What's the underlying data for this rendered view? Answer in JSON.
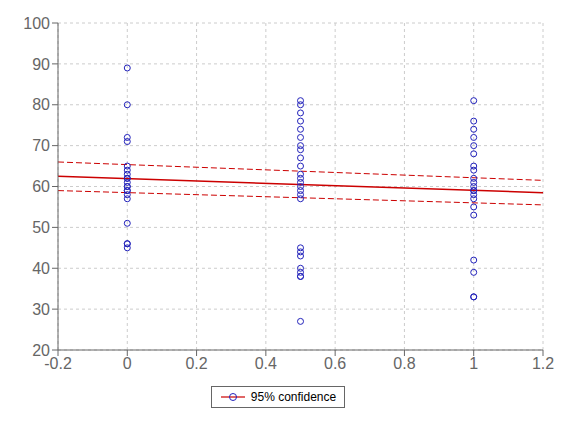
{
  "chart_data": {
    "type": "scatter",
    "title": "",
    "xlim": [
      -0.2,
      1.2
    ],
    "ylim": [
      20,
      100
    ],
    "xticks": [
      -0.2,
      0,
      0.2,
      0.4,
      0.6,
      0.8,
      1.0,
      1.2
    ],
    "yticks": [
      20,
      30,
      40,
      50,
      60,
      70,
      80,
      90,
      100
    ],
    "grid": true,
    "legend": "bottom",
    "series": [
      {
        "type": "scatter",
        "color": "#2222bb",
        "marker": "o",
        "x": [
          0,
          0,
          0,
          0,
          0,
          0,
          0,
          0,
          0,
          0,
          0,
          0,
          0,
          0,
          0,
          0,
          0,
          0,
          0,
          0
        ],
        "values": [
          89,
          80,
          72,
          71,
          65,
          64,
          63,
          62,
          62,
          61,
          60,
          60,
          59,
          59,
          58,
          57,
          51,
          46,
          46,
          45
        ]
      },
      {
        "type": "scatter",
        "color": "#2222bb",
        "marker": "o",
        "x": [
          0.5,
          0.5,
          0.5,
          0.5,
          0.5,
          0.5,
          0.5,
          0.5,
          0.5,
          0.5,
          0.5,
          0.5,
          0.5,
          0.5,
          0.5,
          0.5,
          0.5,
          0.5,
          0.5,
          0.5,
          0.5,
          0.5,
          0.5,
          0.5,
          0.5
        ],
        "values": [
          81,
          80,
          78,
          76,
          74,
          72,
          70,
          69,
          67,
          65,
          63,
          62,
          61,
          60,
          59,
          58,
          57,
          45,
          44,
          43,
          40,
          39,
          38,
          38,
          27
        ]
      },
      {
        "type": "scatter",
        "color": "#2222bb",
        "marker": "o",
        "x": [
          1.0,
          1.0,
          1.0,
          1.0,
          1.0,
          1.0,
          1.0,
          1.0,
          1.0,
          1.0,
          1.0,
          1.0,
          1.0,
          1.0,
          1.0,
          1.0,
          1.0,
          1.0,
          1.0,
          1.0,
          1.0
        ],
        "values": [
          81,
          76,
          74,
          72,
          70,
          68,
          65,
          64,
          62,
          61,
          60,
          59,
          59,
          58,
          57,
          55,
          53,
          42,
          39,
          33,
          33
        ]
      },
      {
        "name": "95% confidence",
        "type": "line",
        "color": "#cc0000",
        "line_style": "solid",
        "x": [
          -0.2,
          1.2
        ],
        "values": [
          62.5,
          58.5
        ]
      },
      {
        "type": "line",
        "color": "#cc0000",
        "line_style": "dashed",
        "x": [
          -0.2,
          1.2
        ],
        "values": [
          66.0,
          61.5
        ]
      },
      {
        "type": "line",
        "color": "#cc0000",
        "line_style": "dashed",
        "x": [
          -0.2,
          1.2
        ],
        "values": [
          59.0,
          55.5
        ]
      }
    ]
  }
}
